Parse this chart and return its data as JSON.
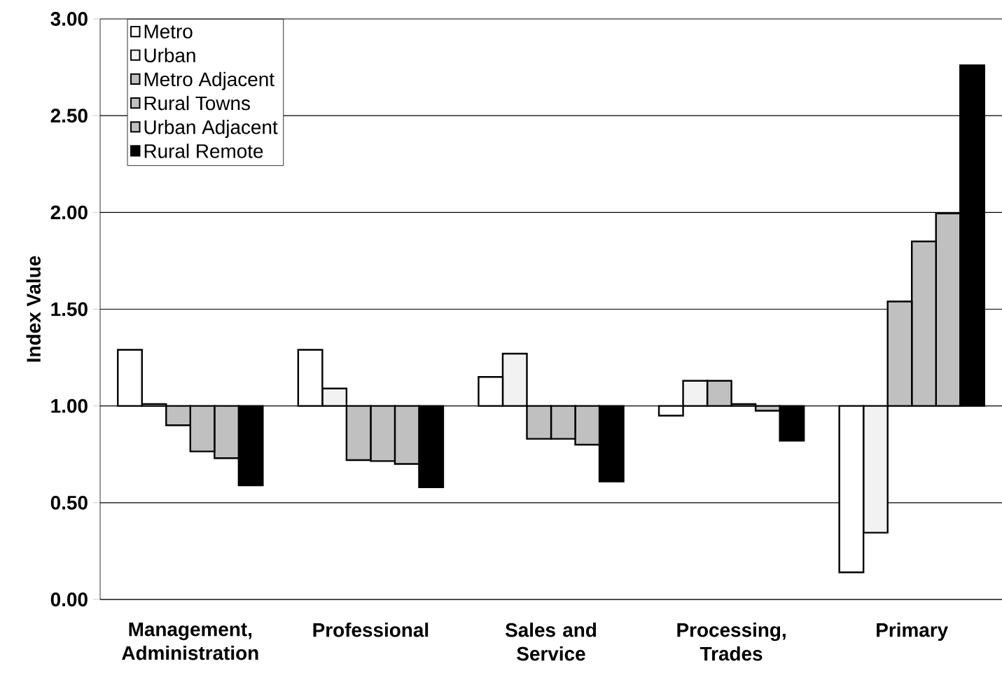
{
  "chart_data": {
    "type": "bar",
    "ylabel": "Index Value",
    "categories": [
      "Management, Administration",
      "Professional",
      "Sales and Service",
      "Processing, Trades",
      "Primary"
    ],
    "series": [
      {
        "name": "Metro",
        "color": "#ffffff",
        "base": [
          1,
          1,
          1,
          1,
          1
        ],
        "values": [
          0.29,
          0.29,
          0.15,
          -0.05,
          -0.86
        ]
      },
      {
        "name": "Urban",
        "color": "#f2f2f2",
        "base": [
          1,
          1,
          1,
          1,
          1
        ],
        "values": [
          0.01,
          0.09,
          0.27,
          0.13,
          -0.655
        ]
      },
      {
        "name": "Metro Adjacent",
        "color": "#c0c0c0",
        "base": [
          1,
          1,
          1,
          1,
          1
        ],
        "values": [
          -0.1,
          -0.28,
          -0.17,
          0.13,
          0.54
        ]
      },
      {
        "name": "Rural Towns",
        "color": "#c0c0c0",
        "base": [
          1,
          1,
          1,
          1,
          1
        ],
        "values": [
          -0.235,
          -0.285,
          -0.17,
          0.01,
          0.85
        ]
      },
      {
        "name": "Urban Adjacent",
        "color": "#c0c0c0",
        "base": [
          1,
          1,
          1,
          1,
          1
        ],
        "values": [
          -0.27,
          -0.3,
          -0.2,
          -0.025,
          0.995
        ]
      },
      {
        "name": "Rural Remote",
        "color": "#000000",
        "base": [
          1,
          1,
          1,
          1,
          1
        ],
        "values": [
          -0.41,
          -0.42,
          -0.39,
          -0.18,
          1.76
        ]
      }
    ],
    "ylim": [
      0,
      3
    ],
    "yticks": [
      {
        "value": 0,
        "label": "0.00"
      },
      {
        "value": 0.5,
        "label": "0.50"
      },
      {
        "value": 1,
        "label": "1.00"
      },
      {
        "value": 1.5,
        "label": "1.50"
      },
      {
        "value": 2,
        "label": "2.00"
      },
      {
        "value": 2.5,
        "label": "2.50"
      },
      {
        "value": 3,
        "label": "3.00"
      }
    ],
    "grid": "y",
    "legend": "top left"
  }
}
